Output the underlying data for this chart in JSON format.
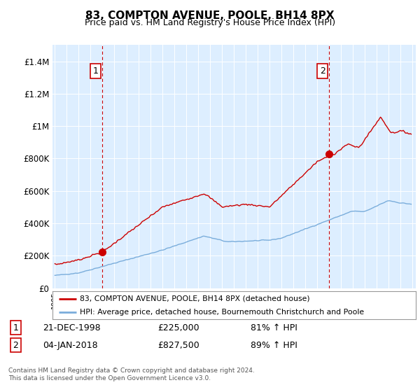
{
  "title": "83, COMPTON AVENUE, POOLE, BH14 8PX",
  "subtitle": "Price paid vs. HM Land Registry's House Price Index (HPI)",
  "ylim": [
    0,
    1500000
  ],
  "yticks": [
    0,
    200000,
    400000,
    600000,
    800000,
    1000000,
    1200000,
    1400000
  ],
  "ytick_labels": [
    "£0",
    "£200K",
    "£400K",
    "£600K",
    "£800K",
    "£1M",
    "£1.2M",
    "£1.4M"
  ],
  "legend_line1": "83, COMPTON AVENUE, POOLE, BH14 8PX (detached house)",
  "legend_line2": "HPI: Average price, detached house, Bournemouth Christchurch and Poole",
  "legend_color1": "#cc0000",
  "legend_color2": "#7aaddb",
  "annotation1_label": "1",
  "annotation1_date": "21-DEC-1998",
  "annotation1_price": "£225,000",
  "annotation1_hpi": "81% ↑ HPI",
  "annotation2_label": "2",
  "annotation2_date": "04-JAN-2018",
  "annotation2_price": "£827,500",
  "annotation2_hpi": "89% ↑ HPI",
  "footer": "Contains HM Land Registry data © Crown copyright and database right 2024.\nThis data is licensed under the Open Government Licence v3.0.",
  "title_fontsize": 11,
  "subtitle_fontsize": 9,
  "background_color": "#ffffff",
  "plot_bg_color": "#ddeeff",
  "grid_color": "#ffffff",
  "sale1_x": 1998.97,
  "sale1_y": 225000,
  "sale2_x": 2018.01,
  "sale2_y": 827500,
  "xlim_start": 1994.8,
  "xlim_end": 2025.3
}
